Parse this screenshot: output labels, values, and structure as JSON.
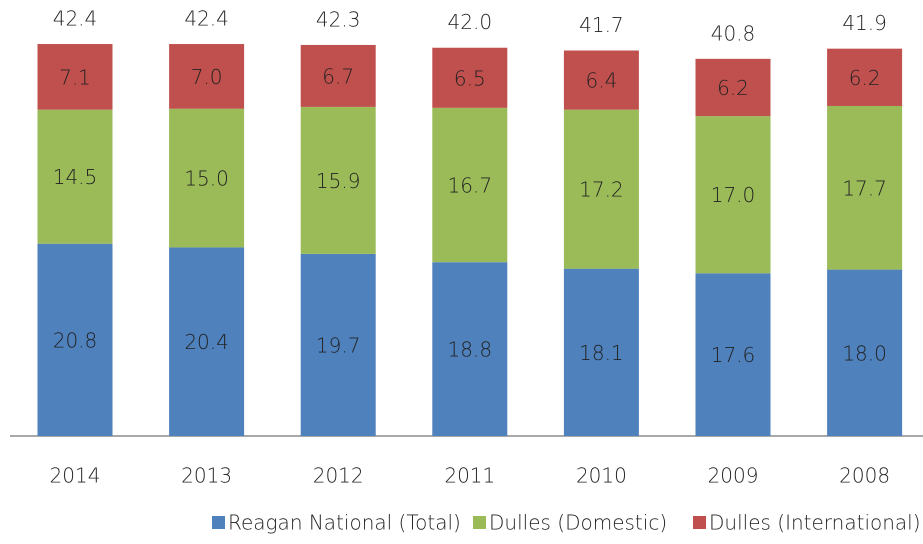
{
  "chart_data": {
    "type": "stacked_bar",
    "categories": [
      "2014",
      "2013",
      "2012",
      "2011",
      "2010",
      "2009",
      "2008"
    ],
    "series": [
      {
        "name": "Reagan National (Total)",
        "color": "#4f81bd",
        "values": [
          20.8,
          20.4,
          19.7,
          18.8,
          18.1,
          17.6,
          18.0
        ],
        "value_labels": [
          "20.8",
          "20.4",
          "19.7",
          "18.8",
          "18.1",
          "17.6",
          "18.0"
        ]
      },
      {
        "name": "Dulles (Domestic)",
        "color": "#9bbb59",
        "values": [
          14.5,
          15.0,
          15.9,
          16.7,
          17.2,
          17.0,
          17.7
        ],
        "value_labels": [
          "14.5",
          "15.0",
          "15.9",
          "16.7",
          "17.2",
          "17.0",
          "17.7"
        ]
      },
      {
        "name": "Dulles (International)",
        "color": "#c0504d",
        "values": [
          7.1,
          7.0,
          6.7,
          6.5,
          6.4,
          6.2,
          6.2
        ],
        "value_labels": [
          "7.1",
          "7.0",
          "6.7",
          "6.5",
          "6.4",
          "6.2",
          "6.2"
        ]
      }
    ],
    "totals": [
      42.4,
      42.4,
      42.3,
      42.0,
      41.7,
      40.8,
      41.9
    ],
    "total_labels": [
      "42.4",
      "42.4",
      "42.3",
      "42.0",
      "41.7",
      "40.8",
      "41.9"
    ],
    "ylim": [
      0,
      45
    ],
    "legend": "bottom"
  }
}
